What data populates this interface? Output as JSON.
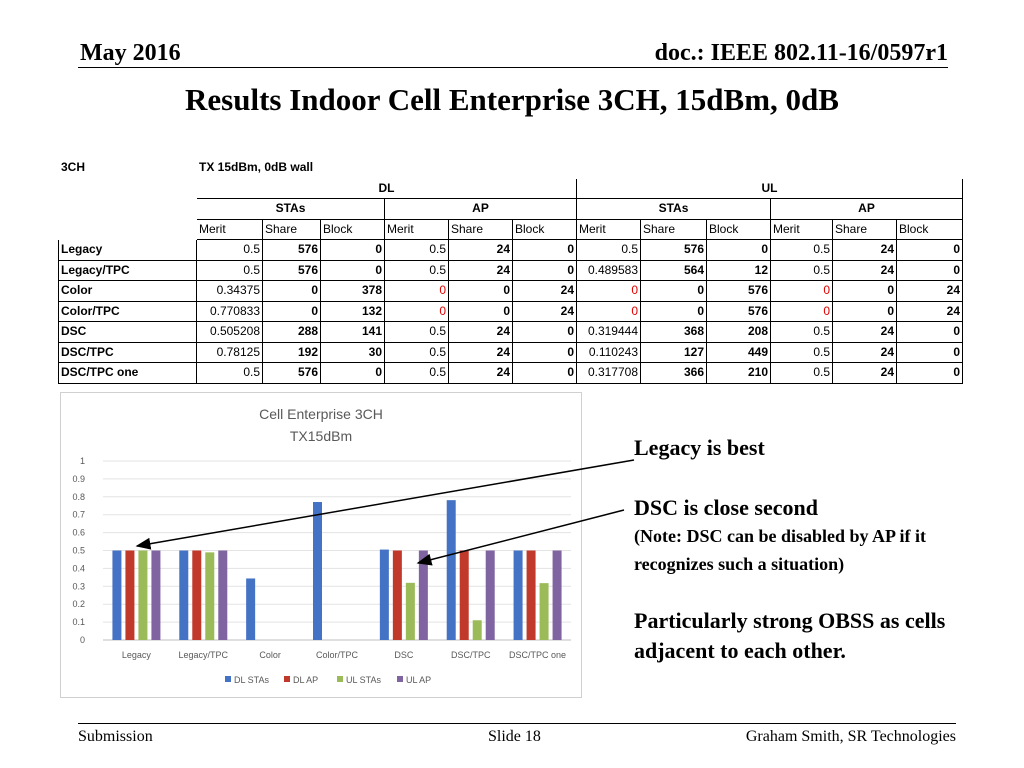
{
  "header": {
    "date": "May 2016",
    "doc": "doc.: IEEE 802.11-16/0597r1"
  },
  "title": "Results Indoor Cell Enterprise 3CH, 15dBm, 0dB",
  "table": {
    "corner": "3CH",
    "config": "TX 15dBm, 0dB wall",
    "dl": "DL",
    "ul": "UL",
    "stas": "STAs",
    "ap": "AP",
    "cols": [
      "Merit",
      "Share",
      "Block",
      "Merit",
      "Share",
      "Block",
      "Merit",
      "Share",
      "Block",
      "Merit",
      "Share",
      "Block"
    ],
    "rows": [
      {
        "label": "Legacy",
        "values": [
          "0.5",
          "576",
          "0",
          "0.5",
          "24",
          "0",
          "0.5",
          "576",
          "0",
          "0.5",
          "24",
          "0"
        ]
      },
      {
        "label": "Legacy/TPC",
        "values": [
          "0.5",
          "576",
          "0",
          "0.5",
          "24",
          "0",
          "0.489583",
          "564",
          "12",
          "0.5",
          "24",
          "0"
        ]
      },
      {
        "label": "Color",
        "values": [
          "0.34375",
          "0",
          "378",
          "0",
          "0",
          "24",
          "0",
          "0",
          "576",
          "0",
          "0",
          "24"
        ]
      },
      {
        "label": "Color/TPC",
        "values": [
          "0.770833",
          "0",
          "132",
          "0",
          "0",
          "24",
          "0",
          "0",
          "576",
          "0",
          "0",
          "24"
        ]
      },
      {
        "label": "DSC",
        "values": [
          "0.505208",
          "288",
          "141",
          "0.5",
          "24",
          "0",
          "0.319444",
          "368",
          "208",
          "0.5",
          "24",
          "0"
        ]
      },
      {
        "label": "DSC/TPC",
        "values": [
          "0.78125",
          "192",
          "30",
          "0.5",
          "24",
          "0",
          "0.110243",
          "127",
          "449",
          "0.5",
          "24",
          "0"
        ]
      },
      {
        "label": "DSC/TPC one",
        "values": [
          "0.5",
          "576",
          "0",
          "0.5",
          "24",
          "0",
          "0.317708",
          "366",
          "210",
          "0.5",
          "24",
          "0"
        ]
      }
    ]
  },
  "chart_data": {
    "type": "bar",
    "title": "Cell Enterprise 3CH",
    "subtitle": "TX15dBm",
    "categories": [
      "Legacy",
      "Legacy/TPC",
      "Color",
      "Color/TPC",
      "DSC",
      "DSC/TPC",
      "DSC/TPC one"
    ],
    "series": [
      {
        "name": "DL STAs",
        "color": "#4472c4",
        "values": [
          0.5,
          0.5,
          0.34375,
          0.770833,
          0.505208,
          0.78125,
          0.5
        ]
      },
      {
        "name": "DL AP",
        "color": "#c0392b",
        "values": [
          0.5,
          0.5,
          0,
          0,
          0.5,
          0.5,
          0.5
        ]
      },
      {
        "name": "UL STAs",
        "color": "#9bbb59",
        "values": [
          0.5,
          0.489583,
          0,
          0,
          0.319444,
          0.110243,
          0.317708
        ]
      },
      {
        "name": "UL AP",
        "color": "#8064a2",
        "values": [
          0.5,
          0.5,
          0,
          0,
          0.5,
          0.5,
          0.5
        ]
      }
    ],
    "ylim": [
      0,
      1
    ],
    "yticks": [
      "0",
      "0.1",
      "0.2",
      "0.3",
      "0.4",
      "0.5",
      "0.6",
      "0.7",
      "0.8",
      "0.9",
      "1"
    ],
    "grid": true,
    "legend": "bottom"
  },
  "notes": {
    "n1": "Legacy is best",
    "n2": "DSC is close second",
    "n3": "(Note: DSC can be disabled by AP if it recognizes such a situation)",
    "n4": "Particularly strong OBSS as cells adjacent to each other."
  },
  "footer": {
    "left": "Submission",
    "slide": "Slide 18",
    "author": "Graham Smith, SR Technologies"
  }
}
